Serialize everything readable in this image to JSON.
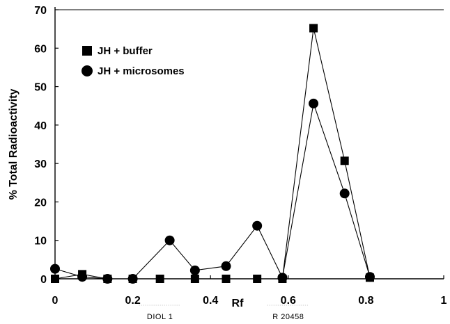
{
  "chart_data": {
    "type": "line",
    "title": "",
    "xlabel": "Rf",
    "ylabel": "% Total Radioactivity",
    "xlim": [
      0,
      1
    ],
    "ylim": [
      0,
      70
    ],
    "xticks": [
      "0",
      "0.2",
      "0.4",
      "0.6",
      "0.8",
      "1"
    ],
    "yticks": [
      "0",
      "10",
      "20",
      "30",
      "40",
      "50",
      "60",
      "70"
    ],
    "grid": false,
    "legend_position": "top-left",
    "series": [
      {
        "name": "JH + buffer",
        "marker": "square",
        "x": [
          0,
          0.07,
          0.135,
          0.2,
          0.27,
          0.36,
          0.44,
          0.52,
          0.585,
          0.665,
          0.745,
          0.81
        ],
        "y": [
          0,
          1.2,
          0,
          0,
          0,
          0,
          0,
          0,
          0,
          65.2,
          30.7,
          0.3
        ]
      },
      {
        "name": "JH + microsomes",
        "marker": "circle",
        "x": [
          0,
          0.07,
          0.135,
          0.2,
          0.295,
          0.36,
          0.44,
          0.52,
          0.585,
          0.665,
          0.745,
          0.81
        ],
        "y": [
          2.6,
          0.5,
          0,
          0,
          10,
          2.2,
          3.3,
          13.8,
          0.3,
          45.6,
          22.2,
          0.5
        ]
      }
    ],
    "annotations": [
      {
        "text": "DIOL 1",
        "x": 0.27
      },
      {
        "text": "R 20458",
        "x": 0.6
      }
    ]
  }
}
